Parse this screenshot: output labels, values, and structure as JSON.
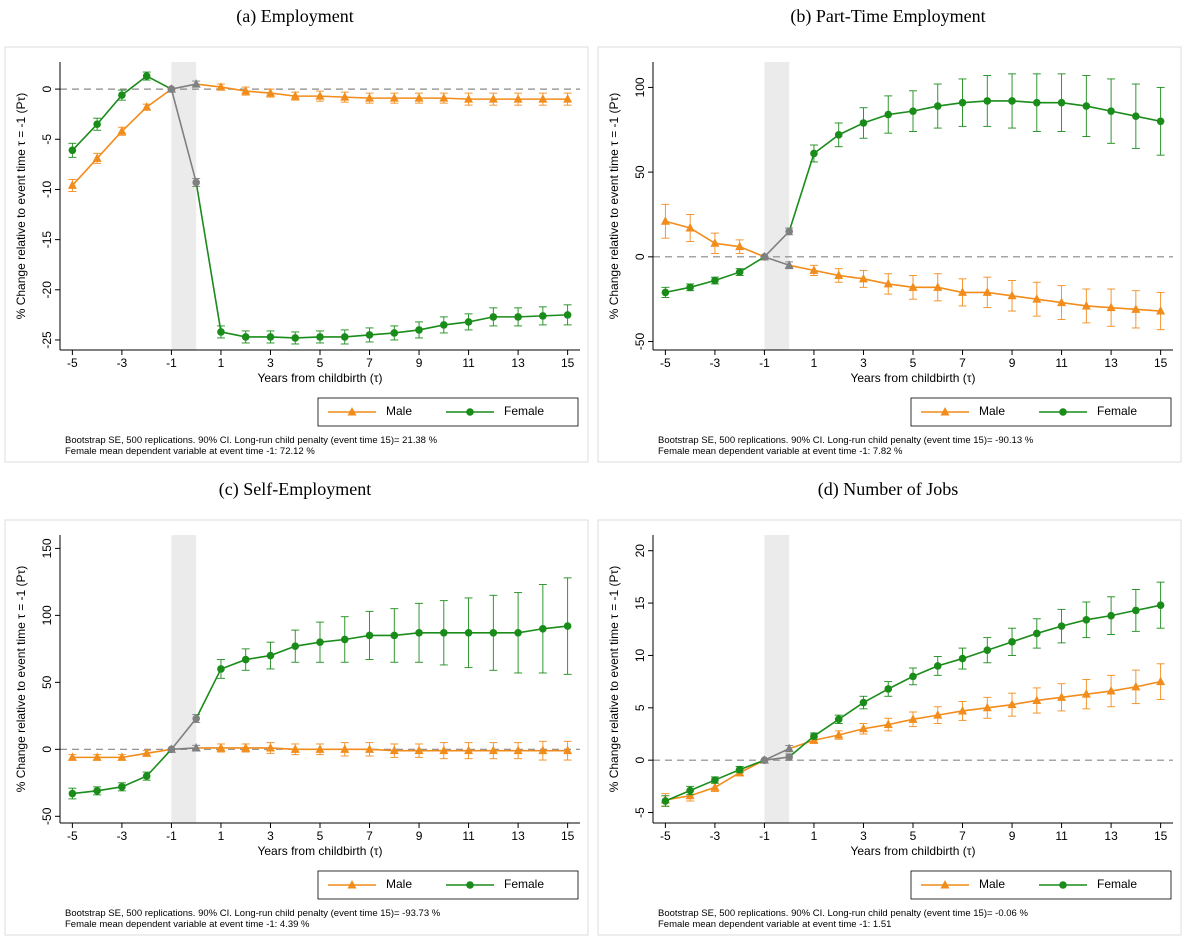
{
  "chart_data": [
    {
      "type": "line",
      "title": "(a) Employment",
      "ylabel": "% Change relative to event time τ = -1 (Pτ)",
      "xlabel": "Years from childbirth (τ)",
      "x": [
        -5,
        -4,
        -3,
        -2,
        -1,
        0,
        1,
        2,
        3,
        4,
        5,
        6,
        7,
        8,
        9,
        10,
        11,
        12,
        13,
        14,
        15
      ],
      "series": [
        {
          "name": "Male",
          "color": "#f28c1b",
          "marker": "triangle",
          "values": [
            -9.6,
            -6.9,
            -4.2,
            -1.8,
            0,
            0.5,
            0.2,
            -0.2,
            -0.4,
            -0.7,
            -0.7,
            -0.8,
            -0.9,
            -0.9,
            -0.9,
            -0.9,
            -1.0,
            -1.0,
            -1.0,
            -1.0,
            -1.0
          ],
          "errors": [
            0.6,
            0.5,
            0.4,
            0.3,
            0,
            0.3,
            0.3,
            0.4,
            0.4,
            0.4,
            0.5,
            0.5,
            0.5,
            0.5,
            0.5,
            0.5,
            0.6,
            0.6,
            0.6,
            0.6,
            0.6
          ]
        },
        {
          "name": "Female",
          "color": "#1a8c1a",
          "marker": "circle",
          "values": [
            -6.1,
            -3.5,
            -0.6,
            1.3,
            0,
            -9.3,
            -24.2,
            -24.7,
            -24.7,
            -24.8,
            -24.7,
            -24.7,
            -24.5,
            -24.3,
            -24.0,
            -23.5,
            -23.2,
            -22.7,
            -22.7,
            -22.6,
            -22.5
          ],
          "errors": [
            0.7,
            0.6,
            0.5,
            0.4,
            0,
            0.4,
            0.6,
            0.6,
            0.6,
            0.6,
            0.6,
            0.7,
            0.7,
            0.7,
            0.8,
            0.8,
            0.8,
            0.9,
            0.9,
            0.9,
            1.0
          ]
        }
      ],
      "xlim": [
        -5.5,
        15.5
      ],
      "xticks": [
        -5,
        -3,
        -1,
        1,
        3,
        5,
        7,
        9,
        11,
        13,
        15
      ],
      "ylim": [
        -26,
        2.7
      ],
      "yticks": [
        0,
        -5,
        -10,
        -15,
        -20,
        -25
      ],
      "refline": 0,
      "shade": [
        -1,
        0
      ],
      "shade_color": "#ebebeb",
      "transition_color": "#808080",
      "legend": "bottom-right",
      "notes": [
        "Bootstrap SE, 500 replications. 90% CI. Long-run child penalty (event time 15)= 21.38 %",
        "Female mean dependent variable at event time -1: 72.12 %"
      ]
    },
    {
      "type": "line",
      "title": "(b) Part-Time Employment",
      "ylabel": "% Change relative to event time τ = -1 (Pτ)",
      "xlabel": "Years from childbirth (τ)",
      "x": [
        -5,
        -4,
        -3,
        -2,
        -1,
        0,
        1,
        2,
        3,
        4,
        5,
        6,
        7,
        8,
        9,
        10,
        11,
        12,
        13,
        14,
        15
      ],
      "series": [
        {
          "name": "Male",
          "color": "#f28c1b",
          "marker": "triangle",
          "values": [
            21,
            17,
            8,
            6,
            0,
            -5,
            -8,
            -11,
            -13,
            -16,
            -18,
            -18,
            -21,
            -21,
            -23,
            -25,
            -27,
            -29,
            -30,
            -31,
            -32
          ],
          "errors": [
            10,
            8,
            6,
            4,
            0,
            2,
            3,
            4,
            5,
            6,
            7,
            8,
            8,
            9,
            9,
            10,
            10,
            10,
            11,
            11,
            11
          ]
        },
        {
          "name": "Female",
          "color": "#1a8c1a",
          "marker": "circle",
          "values": [
            -21,
            -18,
            -14,
            -9,
            0,
            15,
            61,
            72,
            79,
            84,
            86,
            89,
            91,
            92,
            92,
            91,
            91,
            89,
            86,
            83,
            80
          ],
          "errors": [
            3,
            2,
            2,
            2,
            0,
            2,
            5,
            7,
            9,
            11,
            12,
            13,
            14,
            15,
            16,
            17,
            17,
            18,
            19,
            19,
            20
          ]
        }
      ],
      "xlim": [
        -5.5,
        15.5
      ],
      "xticks": [
        -5,
        -3,
        -1,
        1,
        3,
        5,
        7,
        9,
        11,
        13,
        15
      ],
      "ylim": [
        -55,
        115
      ],
      "yticks": [
        -50,
        0,
        50,
        100
      ],
      "refline": 0,
      "shade": [
        -1,
        0
      ],
      "shade_color": "#ebebeb",
      "transition_color": "#808080",
      "legend": "bottom-right",
      "notes": [
        "Bootstrap SE, 500 replications. 90% CI. Long-run child penalty (event time 15)= -90.13 %",
        "Female mean dependent variable at event time -1: 7.82 %"
      ]
    },
    {
      "type": "line",
      "title": "(c) Self-Employment",
      "ylabel": "% Change relative to event time τ = -1 (Pτ)",
      "xlabel": "Years from childbirth (τ)",
      "x": [
        -5,
        -4,
        -3,
        -2,
        -1,
        0,
        1,
        2,
        3,
        4,
        5,
        6,
        7,
        8,
        9,
        10,
        11,
        12,
        13,
        14,
        15
      ],
      "series": [
        {
          "name": "Male",
          "color": "#f28c1b",
          "marker": "triangle",
          "values": [
            -6,
            -6,
            -6,
            -3,
            0,
            1,
            1,
            1,
            1,
            0,
            0,
            0,
            0,
            -1,
            -1,
            -1,
            -1,
            -1,
            -1,
            -1,
            -1
          ],
          "errors": [
            2,
            2,
            2,
            2,
            0,
            2,
            3,
            3,
            4,
            4,
            4,
            5,
            5,
            5,
            5,
            6,
            6,
            6,
            6,
            7,
            7
          ]
        },
        {
          "name": "Female",
          "color": "#1a8c1a",
          "marker": "circle",
          "values": [
            -33,
            -31,
            -28,
            -20,
            0,
            23,
            60,
            67,
            70,
            77,
            80,
            82,
            85,
            85,
            87,
            87,
            87,
            87,
            87,
            90,
            92
          ],
          "errors": [
            4,
            3,
            3,
            3,
            0,
            3,
            7,
            8,
            10,
            12,
            15,
            17,
            18,
            20,
            22,
            24,
            26,
            28,
            30,
            33,
            36
          ]
        }
      ],
      "xlim": [
        -5.5,
        15.5
      ],
      "xticks": [
        -5,
        -3,
        -1,
        1,
        3,
        5,
        7,
        9,
        11,
        13,
        15
      ],
      "ylim": [
        -55,
        160
      ],
      "yticks": [
        -50,
        0,
        50,
        100,
        150
      ],
      "refline": 0,
      "shade": [
        -1,
        0
      ],
      "shade_color": "#ebebeb",
      "transition_color": "#808080",
      "legend": "bottom-right",
      "notes": [
        "Bootstrap SE, 500 replications. 90% CI. Long-run child penalty (event time 15)= -93.73 %",
        "Female mean dependent variable at event time -1: 4.39 %"
      ]
    },
    {
      "type": "line",
      "title": "(d) Number of Jobs",
      "ylabel": "% Change relative to event time τ = -1 (Pτ)",
      "xlabel": "Years from childbirth (τ)",
      "x": [
        -5,
        -4,
        -3,
        -2,
        -1,
        0,
        1,
        2,
        3,
        4,
        5,
        6,
        7,
        8,
        9,
        10,
        11,
        12,
        13,
        14,
        15
      ],
      "series": [
        {
          "name": "Male",
          "color": "#f28c1b",
          "marker": "triangle",
          "values": [
            -3.8,
            -3.4,
            -2.6,
            -1.2,
            0,
            1.1,
            1.9,
            2.4,
            3.0,
            3.4,
            3.9,
            4.3,
            4.7,
            5.0,
            5.3,
            5.7,
            6.0,
            6.3,
            6.6,
            7.0,
            7.5
          ],
          "errors": [
            0.6,
            0.5,
            0.4,
            0.3,
            0,
            0.3,
            0.3,
            0.4,
            0.5,
            0.6,
            0.7,
            0.8,
            0.9,
            1.0,
            1.1,
            1.2,
            1.3,
            1.4,
            1.5,
            1.6,
            1.7
          ]
        },
        {
          "name": "Female",
          "color": "#1a8c1a",
          "marker": "circle",
          "values": [
            -3.9,
            -2.9,
            -1.9,
            -0.9,
            0,
            0.3,
            2.3,
            3.9,
            5.5,
            6.8,
            8.0,
            9.0,
            9.7,
            10.5,
            11.3,
            12.1,
            12.8,
            13.4,
            13.8,
            14.3,
            14.8
          ],
          "errors": [
            0.5,
            0.4,
            0.3,
            0.3,
            0,
            0.3,
            0.3,
            0.4,
            0.6,
            0.7,
            0.8,
            0.9,
            1.0,
            1.2,
            1.3,
            1.4,
            1.6,
            1.7,
            1.8,
            2.0,
            2.2
          ]
        }
      ],
      "xlim": [
        -5.5,
        15.5
      ],
      "xticks": [
        -5,
        -3,
        -1,
        1,
        3,
        5,
        7,
        9,
        11,
        13,
        15
      ],
      "ylim": [
        -6,
        21.5
      ],
      "yticks": [
        -5,
        0,
        5,
        10,
        15,
        20
      ],
      "refline": 0,
      "shade": [
        -1,
        0
      ],
      "shade_color": "#ebebeb",
      "transition_color": "#808080",
      "legend": "bottom-right",
      "notes": [
        "Bootstrap SE, 500 replications. 90% CI. Long-run child penalty (event time 15)= -0.06 %",
        "Female mean dependent variable at event time -1: 1.51"
      ]
    }
  ]
}
